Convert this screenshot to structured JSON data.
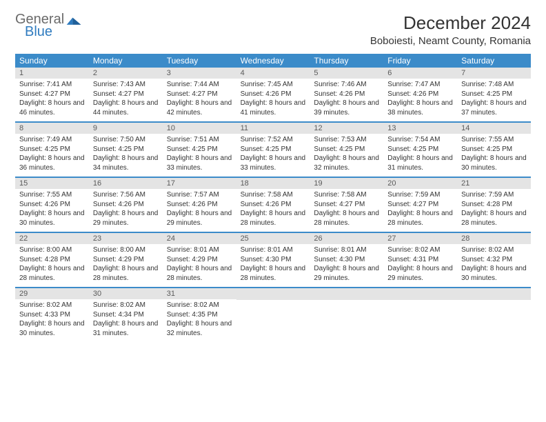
{
  "logo": {
    "general": "General",
    "blue": "Blue"
  },
  "header": {
    "month_title": "December 2024",
    "location": "Boboiesti, Neamt County, Romania"
  },
  "colors": {
    "header_bar": "#3b8bc9",
    "day_bar": "#e4e4e4",
    "week_divider": "#3b8bc9",
    "logo_gray": "#6a6a6a",
    "logo_blue": "#2f7bbf"
  },
  "weekdays": [
    "Sunday",
    "Monday",
    "Tuesday",
    "Wednesday",
    "Thursday",
    "Friday",
    "Saturday"
  ],
  "weeks": [
    [
      {
        "num": "1",
        "sunrise": "Sunrise: 7:41 AM",
        "sunset": "Sunset: 4:27 PM",
        "daylight": "Daylight: 8 hours and 46 minutes."
      },
      {
        "num": "2",
        "sunrise": "Sunrise: 7:43 AM",
        "sunset": "Sunset: 4:27 PM",
        "daylight": "Daylight: 8 hours and 44 minutes."
      },
      {
        "num": "3",
        "sunrise": "Sunrise: 7:44 AM",
        "sunset": "Sunset: 4:27 PM",
        "daylight": "Daylight: 8 hours and 42 minutes."
      },
      {
        "num": "4",
        "sunrise": "Sunrise: 7:45 AM",
        "sunset": "Sunset: 4:26 PM",
        "daylight": "Daylight: 8 hours and 41 minutes."
      },
      {
        "num": "5",
        "sunrise": "Sunrise: 7:46 AM",
        "sunset": "Sunset: 4:26 PM",
        "daylight": "Daylight: 8 hours and 39 minutes."
      },
      {
        "num": "6",
        "sunrise": "Sunrise: 7:47 AM",
        "sunset": "Sunset: 4:26 PM",
        "daylight": "Daylight: 8 hours and 38 minutes."
      },
      {
        "num": "7",
        "sunrise": "Sunrise: 7:48 AM",
        "sunset": "Sunset: 4:25 PM",
        "daylight": "Daylight: 8 hours and 37 minutes."
      }
    ],
    [
      {
        "num": "8",
        "sunrise": "Sunrise: 7:49 AM",
        "sunset": "Sunset: 4:25 PM",
        "daylight": "Daylight: 8 hours and 36 minutes."
      },
      {
        "num": "9",
        "sunrise": "Sunrise: 7:50 AM",
        "sunset": "Sunset: 4:25 PM",
        "daylight": "Daylight: 8 hours and 34 minutes."
      },
      {
        "num": "10",
        "sunrise": "Sunrise: 7:51 AM",
        "sunset": "Sunset: 4:25 PM",
        "daylight": "Daylight: 8 hours and 33 minutes."
      },
      {
        "num": "11",
        "sunrise": "Sunrise: 7:52 AM",
        "sunset": "Sunset: 4:25 PM",
        "daylight": "Daylight: 8 hours and 33 minutes."
      },
      {
        "num": "12",
        "sunrise": "Sunrise: 7:53 AM",
        "sunset": "Sunset: 4:25 PM",
        "daylight": "Daylight: 8 hours and 32 minutes."
      },
      {
        "num": "13",
        "sunrise": "Sunrise: 7:54 AM",
        "sunset": "Sunset: 4:25 PM",
        "daylight": "Daylight: 8 hours and 31 minutes."
      },
      {
        "num": "14",
        "sunrise": "Sunrise: 7:55 AM",
        "sunset": "Sunset: 4:25 PM",
        "daylight": "Daylight: 8 hours and 30 minutes."
      }
    ],
    [
      {
        "num": "15",
        "sunrise": "Sunrise: 7:55 AM",
        "sunset": "Sunset: 4:26 PM",
        "daylight": "Daylight: 8 hours and 30 minutes."
      },
      {
        "num": "16",
        "sunrise": "Sunrise: 7:56 AM",
        "sunset": "Sunset: 4:26 PM",
        "daylight": "Daylight: 8 hours and 29 minutes."
      },
      {
        "num": "17",
        "sunrise": "Sunrise: 7:57 AM",
        "sunset": "Sunset: 4:26 PM",
        "daylight": "Daylight: 8 hours and 29 minutes."
      },
      {
        "num": "18",
        "sunrise": "Sunrise: 7:58 AM",
        "sunset": "Sunset: 4:26 PM",
        "daylight": "Daylight: 8 hours and 28 minutes."
      },
      {
        "num": "19",
        "sunrise": "Sunrise: 7:58 AM",
        "sunset": "Sunset: 4:27 PM",
        "daylight": "Daylight: 8 hours and 28 minutes."
      },
      {
        "num": "20",
        "sunrise": "Sunrise: 7:59 AM",
        "sunset": "Sunset: 4:27 PM",
        "daylight": "Daylight: 8 hours and 28 minutes."
      },
      {
        "num": "21",
        "sunrise": "Sunrise: 7:59 AM",
        "sunset": "Sunset: 4:28 PM",
        "daylight": "Daylight: 8 hours and 28 minutes."
      }
    ],
    [
      {
        "num": "22",
        "sunrise": "Sunrise: 8:00 AM",
        "sunset": "Sunset: 4:28 PM",
        "daylight": "Daylight: 8 hours and 28 minutes."
      },
      {
        "num": "23",
        "sunrise": "Sunrise: 8:00 AM",
        "sunset": "Sunset: 4:29 PM",
        "daylight": "Daylight: 8 hours and 28 minutes."
      },
      {
        "num": "24",
        "sunrise": "Sunrise: 8:01 AM",
        "sunset": "Sunset: 4:29 PM",
        "daylight": "Daylight: 8 hours and 28 minutes."
      },
      {
        "num": "25",
        "sunrise": "Sunrise: 8:01 AM",
        "sunset": "Sunset: 4:30 PM",
        "daylight": "Daylight: 8 hours and 28 minutes."
      },
      {
        "num": "26",
        "sunrise": "Sunrise: 8:01 AM",
        "sunset": "Sunset: 4:30 PM",
        "daylight": "Daylight: 8 hours and 29 minutes."
      },
      {
        "num": "27",
        "sunrise": "Sunrise: 8:02 AM",
        "sunset": "Sunset: 4:31 PM",
        "daylight": "Daylight: 8 hours and 29 minutes."
      },
      {
        "num": "28",
        "sunrise": "Sunrise: 8:02 AM",
        "sunset": "Sunset: 4:32 PM",
        "daylight": "Daylight: 8 hours and 30 minutes."
      }
    ],
    [
      {
        "num": "29",
        "sunrise": "Sunrise: 8:02 AM",
        "sunset": "Sunset: 4:33 PM",
        "daylight": "Daylight: 8 hours and 30 minutes."
      },
      {
        "num": "30",
        "sunrise": "Sunrise: 8:02 AM",
        "sunset": "Sunset: 4:34 PM",
        "daylight": "Daylight: 8 hours and 31 minutes."
      },
      {
        "num": "31",
        "sunrise": "Sunrise: 8:02 AM",
        "sunset": "Sunset: 4:35 PM",
        "daylight": "Daylight: 8 hours and 32 minutes."
      },
      null,
      null,
      null,
      null
    ]
  ]
}
